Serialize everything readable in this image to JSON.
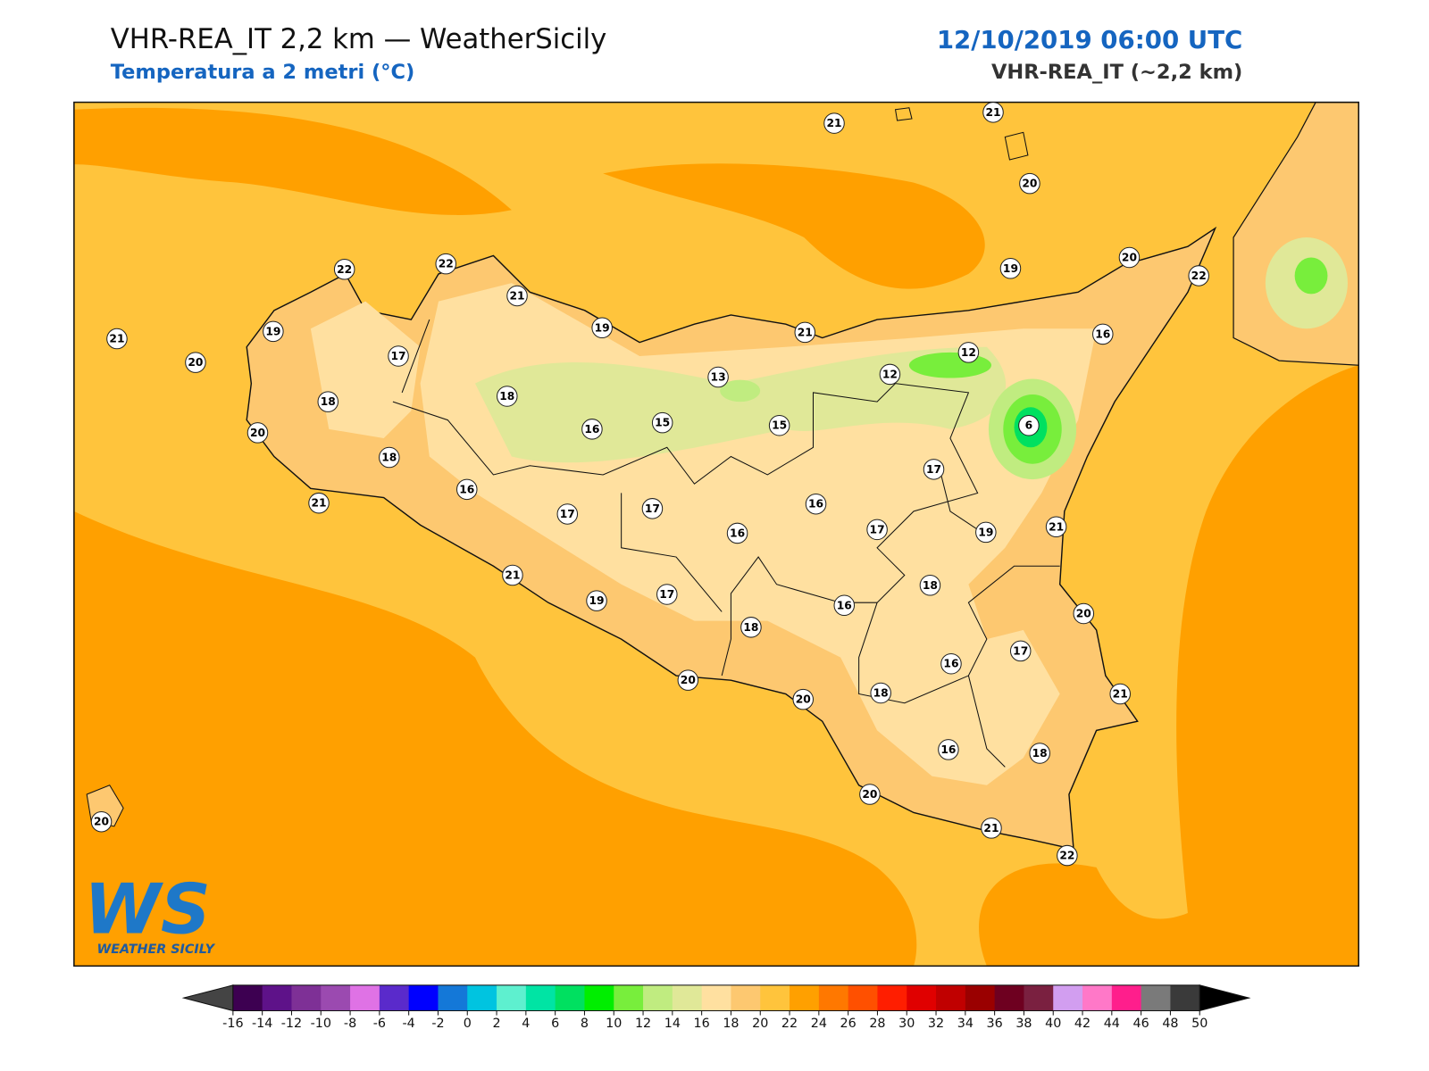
{
  "header": {
    "title": "VHR-REA_IT 2,2 km — WeatherSicily",
    "subtitle": "Temperatura a 2 metri (°C)",
    "run_time": "12/10/2019 06:00 UTC",
    "model": "VHR-REA_IT (~2,2 km)"
  },
  "stations": [
    21,
    21,
    20,
    22,
    22,
    21,
    19,
    20,
    22,
    21,
    19,
    20,
    17,
    19,
    21,
    16,
    12,
    12,
    13,
    18,
    18,
    16,
    15,
    15,
    6,
    20,
    18,
    16,
    17,
    17,
    17,
    16,
    16,
    17,
    19,
    21,
    21,
    21,
    19,
    17,
    18,
    16,
    18,
    20,
    17,
    16,
    20,
    20,
    18,
    21,
    16,
    18,
    20,
    21,
    22,
    20
  ],
  "colorbar": {
    "ticks": [
      -16,
      -14,
      -12,
      -10,
      -8,
      -6,
      -4,
      -2,
      0,
      2,
      4,
      6,
      8,
      10,
      12,
      14,
      16,
      18,
      20,
      22,
      24,
      26,
      28,
      30,
      32,
      34,
      36,
      38,
      40,
      42,
      44,
      46,
      48,
      50
    ],
    "colors": [
      "#3d0051",
      "#5e1289",
      "#7e3096",
      "#9b4ab0",
      "#df72e5",
      "#5a2acb",
      "#0000ff",
      "#1478d8",
      "#00c4e0",
      "#5ef0cf",
      "#00e4a4",
      "#00e060",
      "#00ee00",
      "#78ee3c",
      "#c0ec80",
      "#e0e898",
      "#ffe0a0",
      "#fdc870",
      "#ffc43c",
      "#ffa000",
      "#ff7800",
      "#ff5000",
      "#ff1e00",
      "#e00000",
      "#c00000",
      "#9a0000",
      "#6e0020",
      "#7a2040",
      "#d29ef0",
      "#ff78c8",
      "#ff1e8c",
      "#7a7a7a",
      "#3a3a3a"
    ]
  },
  "logo": {
    "mark": "WS",
    "text": "WEATHER SICILY"
  }
}
